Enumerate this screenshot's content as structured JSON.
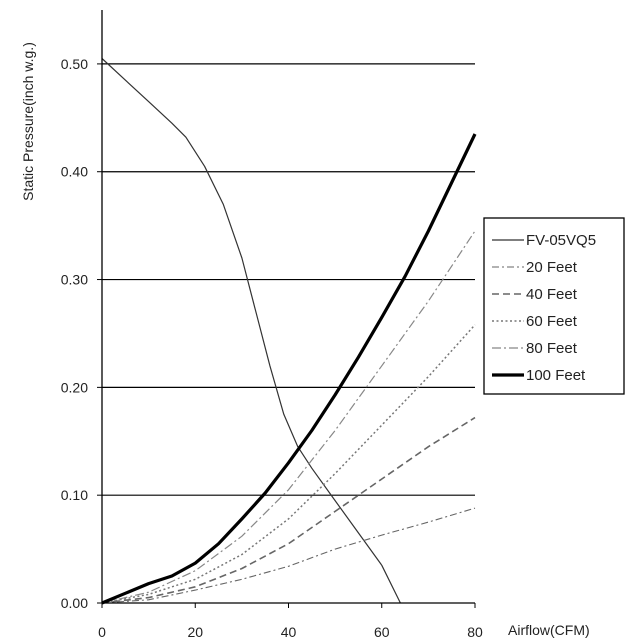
{
  "chart_data": {
    "type": "line",
    "title": "",
    "xlabel": "Airflow(CFM)",
    "ylabel": "Static Pressure(inch w.g.)",
    "xlim": [
      0,
      80
    ],
    "ylim": [
      0,
      0.55
    ],
    "x_ticks": [
      0,
      20,
      40,
      60,
      80
    ],
    "y_ticks": [
      0.0,
      0.1,
      0.2,
      0.3,
      0.4,
      0.5
    ],
    "x_tick_labels": [
      "0",
      "20",
      "40",
      "60",
      "80"
    ],
    "y_tick_labels": [
      "0.00",
      "0.10",
      "0.20",
      "0.30",
      "0.40",
      "0.50"
    ],
    "grid": "horizontal",
    "legend_position": "right",
    "series": [
      {
        "name": "FV-05VQ5",
        "style": "solid-thin",
        "color": "#333333",
        "points": [
          [
            0,
            0.505
          ],
          [
            5,
            0.485
          ],
          [
            10,
            0.465
          ],
          [
            15,
            0.445
          ],
          [
            18,
            0.432
          ],
          [
            22,
            0.405
          ],
          [
            26,
            0.37
          ],
          [
            30,
            0.32
          ],
          [
            33,
            0.27
          ],
          [
            36,
            0.22
          ],
          [
            39,
            0.175
          ],
          [
            42,
            0.145
          ],
          [
            45,
            0.125
          ],
          [
            50,
            0.095
          ],
          [
            55,
            0.065
          ],
          [
            60,
            0.035
          ],
          [
            64,
            0.0
          ]
        ]
      },
      {
        "name": "20 Feet",
        "style": "dash-dot-thin",
        "color": "#666666",
        "points": [
          [
            0,
            0.0
          ],
          [
            10,
            0.003
          ],
          [
            20,
            0.012
          ],
          [
            30,
            0.022
          ],
          [
            40,
            0.034
          ],
          [
            50,
            0.05
          ],
          [
            60,
            0.063
          ],
          [
            70,
            0.075
          ],
          [
            80,
            0.088
          ]
        ]
      },
      {
        "name": "40 Feet",
        "style": "dashed",
        "color": "#666666",
        "points": [
          [
            0,
            0.0
          ],
          [
            10,
            0.005
          ],
          [
            20,
            0.015
          ],
          [
            30,
            0.032
          ],
          [
            40,
            0.055
          ],
          [
            50,
            0.085
          ],
          [
            60,
            0.115
          ],
          [
            70,
            0.145
          ],
          [
            80,
            0.172
          ]
        ]
      },
      {
        "name": "60 Feet",
        "style": "dotted",
        "color": "#777777",
        "points": [
          [
            0,
            0.0
          ],
          [
            10,
            0.008
          ],
          [
            20,
            0.022
          ],
          [
            30,
            0.045
          ],
          [
            40,
            0.078
          ],
          [
            50,
            0.12
          ],
          [
            60,
            0.165
          ],
          [
            70,
            0.21
          ],
          [
            80,
            0.258
          ]
        ]
      },
      {
        "name": "80 Feet",
        "style": "dash-dot",
        "color": "#888888",
        "points": [
          [
            0,
            0.0
          ],
          [
            10,
            0.01
          ],
          [
            20,
            0.03
          ],
          [
            30,
            0.062
          ],
          [
            40,
            0.105
          ],
          [
            50,
            0.16
          ],
          [
            60,
            0.22
          ],
          [
            70,
            0.28
          ],
          [
            80,
            0.345
          ]
        ]
      },
      {
        "name": "100 Feet",
        "style": "solid-thick",
        "color": "#000000",
        "points": [
          [
            0,
            0.0
          ],
          [
            10,
            0.018
          ],
          [
            15,
            0.025
          ],
          [
            20,
            0.037
          ],
          [
            25,
            0.055
          ],
          [
            30,
            0.078
          ],
          [
            35,
            0.102
          ],
          [
            40,
            0.13
          ],
          [
            45,
            0.16
          ],
          [
            50,
            0.193
          ],
          [
            55,
            0.228
          ],
          [
            60,
            0.265
          ],
          [
            65,
            0.303
          ],
          [
            70,
            0.345
          ],
          [
            75,
            0.39
          ],
          [
            80,
            0.435
          ]
        ]
      }
    ]
  }
}
